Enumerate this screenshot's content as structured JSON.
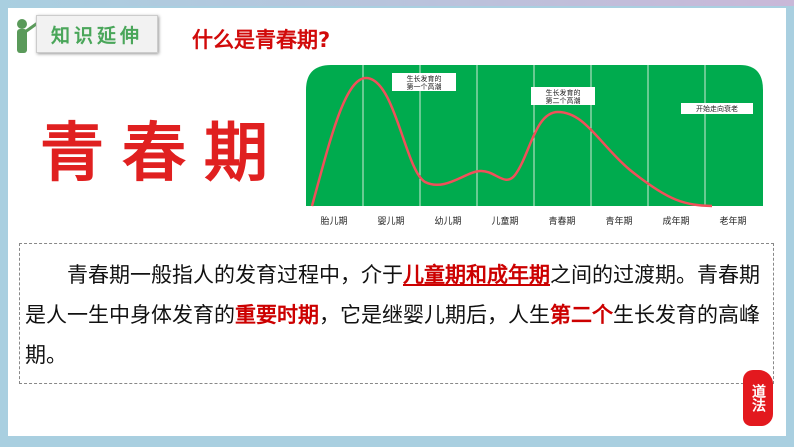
{
  "header": {
    "badge": "知识延伸",
    "title": "什么是青春期?"
  },
  "big_title": "青春期",
  "chart_data": {
    "type": "line",
    "categories": [
      "胎儿期",
      "婴儿期",
      "幼儿期",
      "儿童期",
      "青春期",
      "青年期",
      "成年期",
      "老年期"
    ],
    "annotations": [
      {
        "line1": "生长发育的",
        "line2": "第一个高潮"
      },
      {
        "line1": "生长发育的",
        "line2": "第二个高潮"
      },
      {
        "line1": "开始走向衰老",
        "line2": ""
      }
    ],
    "colors": {
      "background": "#00ab4e",
      "curve": "#f0505a"
    }
  },
  "paragraph": {
    "p1": "青春期一般指人的发育过程中，介于",
    "h1": "儿童期和成年期",
    "p2": "之间的过渡期。青春期是人一生中身体发育的",
    "h2": "重要时期",
    "p3": "，它是继婴儿期后，人生",
    "h3": "第二个",
    "p4": "生长发育的高峰期。"
  },
  "seal": "道法"
}
